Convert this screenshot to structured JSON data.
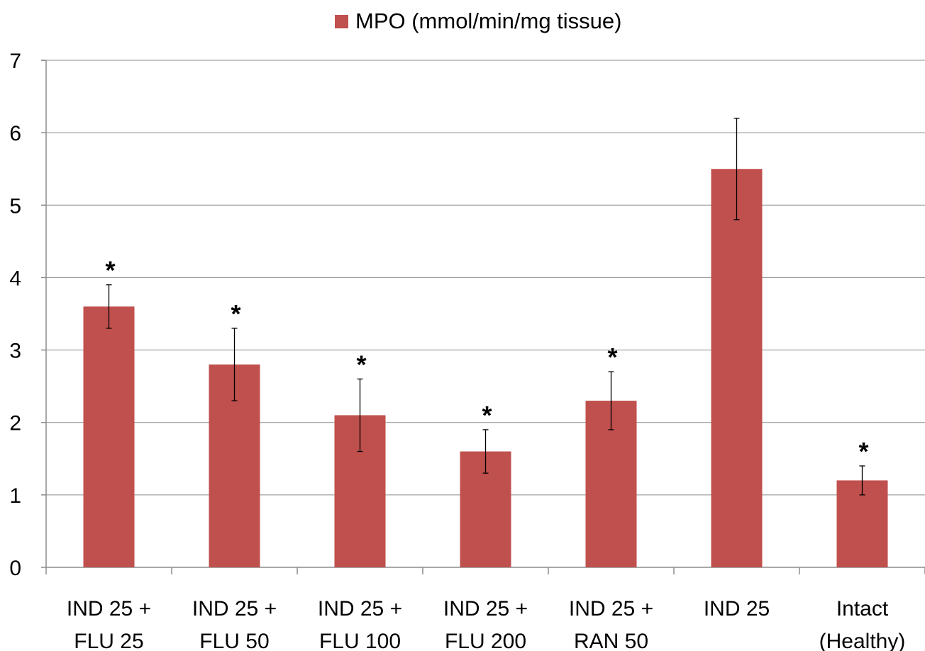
{
  "chart_data": {
    "type": "bar",
    "title": "",
    "xlabel": "",
    "ylabel": "",
    "ylim": [
      0,
      7
    ],
    "yticks": [
      0,
      1,
      2,
      3,
      4,
      5,
      6,
      7
    ],
    "grid": true,
    "legend_position": "top-center",
    "bar_color": "#C0504D",
    "categories": [
      [
        "IND 25 +",
        "FLU 25"
      ],
      [
        "IND 25 +",
        "FLU 50"
      ],
      [
        "IND 25 +",
        "FLU 100"
      ],
      [
        "IND 25 +",
        "FLU 200"
      ],
      [
        "IND 25 +",
        "RAN 50"
      ],
      [
        "IND 25"
      ],
      [
        "Intact",
        "(Healthy)"
      ]
    ],
    "series": [
      {
        "name": "MPO (mmol/min/mg tissue)",
        "values": [
          3.6,
          2.8,
          2.1,
          1.6,
          2.3,
          5.5,
          1.2
        ],
        "errors": [
          0.3,
          0.5,
          0.5,
          0.3,
          0.4,
          0.7,
          0.2
        ]
      }
    ],
    "annotations": [
      "*",
      "*",
      "*",
      "*",
      "*",
      "",
      "*"
    ]
  }
}
